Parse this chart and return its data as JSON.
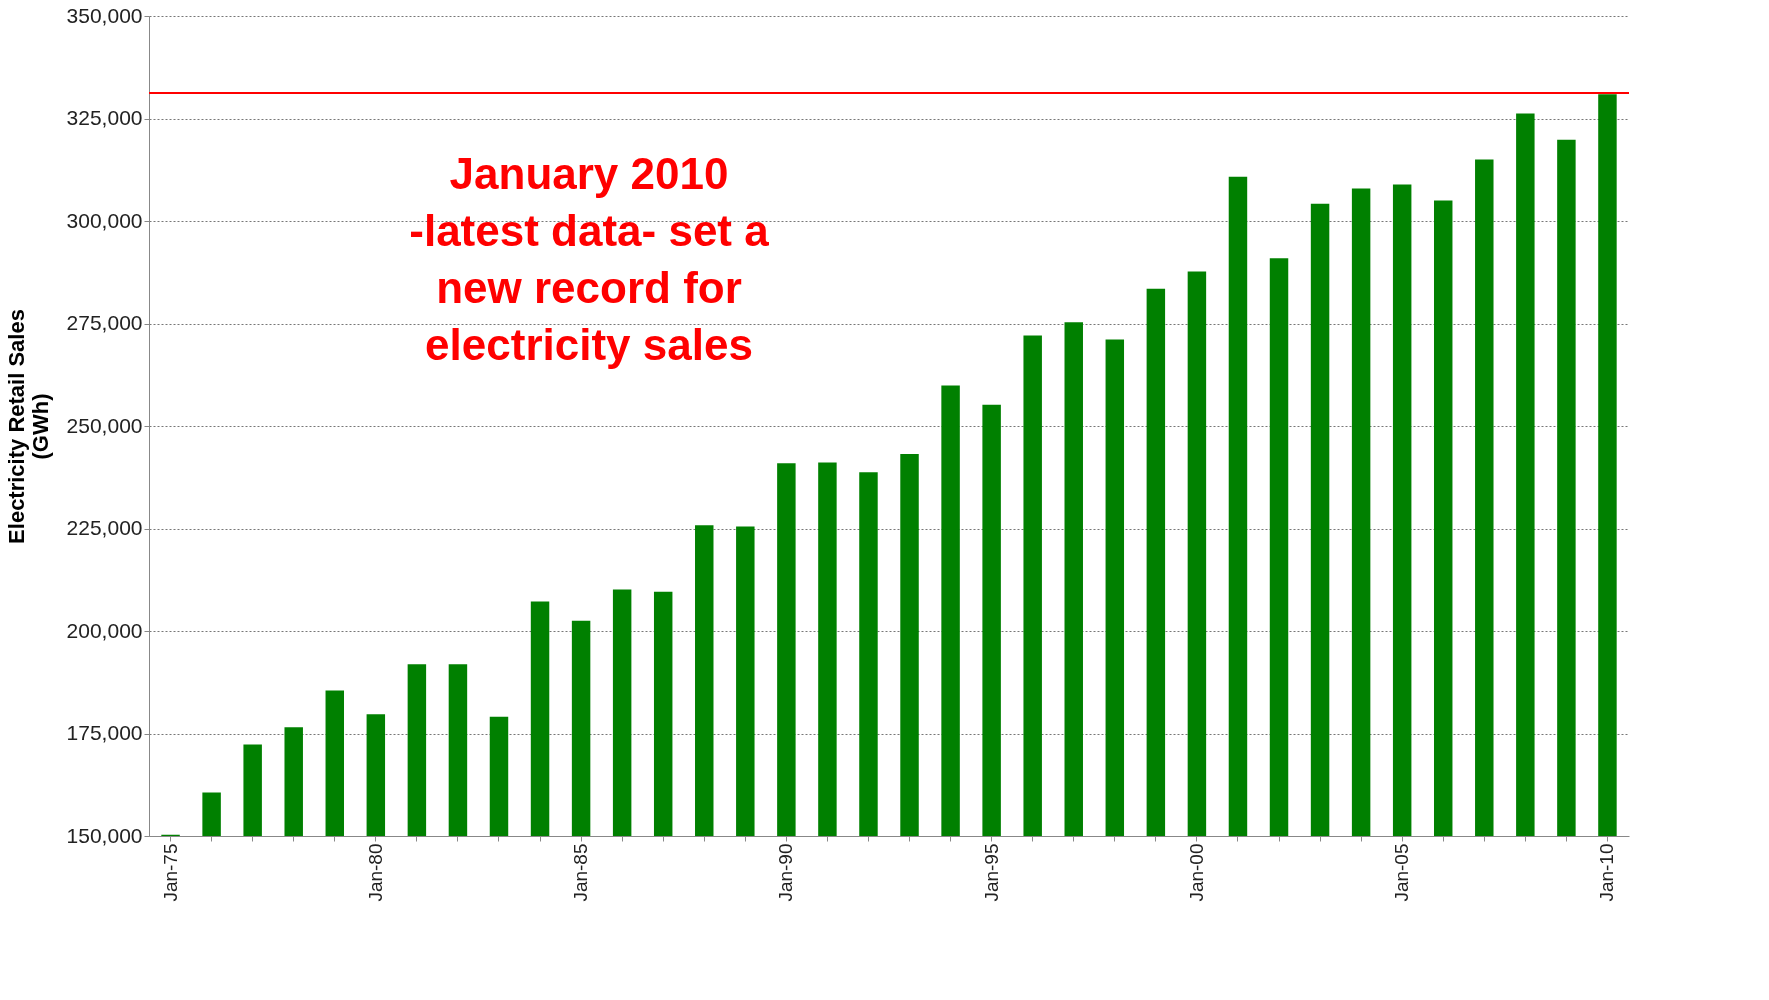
{
  "chart_data": {
    "type": "bar",
    "ylabel": "Electricity Retail Sales\n(GWh)",
    "categories": [
      "Jan-75",
      null,
      null,
      null,
      null,
      "Jan-80",
      null,
      null,
      null,
      null,
      "Jan-85",
      null,
      null,
      null,
      null,
      "Jan-90",
      null,
      null,
      null,
      null,
      "Jan-95",
      null,
      null,
      null,
      null,
      "Jan-00",
      null,
      null,
      null,
      null,
      "Jan-05",
      null,
      null,
      null,
      null,
      "Jan-10"
    ],
    "values": [
      150300,
      160600,
      172300,
      176500,
      185500,
      179700,
      191900,
      191900,
      179100,
      207200,
      202500,
      210100,
      209600,
      225800,
      225500,
      240900,
      241100,
      238700,
      243200,
      259900,
      255200,
      272100,
      275300,
      271100,
      283500,
      287700,
      310800,
      290900,
      304200,
      307900,
      308900,
      305000,
      315000,
      326200,
      319800,
      330900
    ],
    "color": "#008000",
    "ylim": [
      150000,
      350000
    ],
    "yticks": [
      {
        "value": 150000,
        "label": "150,000"
      },
      {
        "value": 175000,
        "label": "175,000"
      },
      {
        "value": 200000,
        "label": "200,000"
      },
      {
        "value": 225000,
        "label": "225,000"
      },
      {
        "value": 250000,
        "label": "250,000"
      },
      {
        "value": 275000,
        "label": "275,000"
      },
      {
        "value": 300000,
        "label": "300,000"
      },
      {
        "value": 325000,
        "label": "325,000"
      },
      {
        "value": 350000,
        "label": "350,000"
      }
    ],
    "grid": "y",
    "ref_lines": [
      {
        "axis": "y",
        "value": 331200,
        "color": "#ff0000"
      }
    ],
    "annotations": [
      "January 2010\n-latest data- set a\nnew record for\nelectricity sales"
    ]
  }
}
